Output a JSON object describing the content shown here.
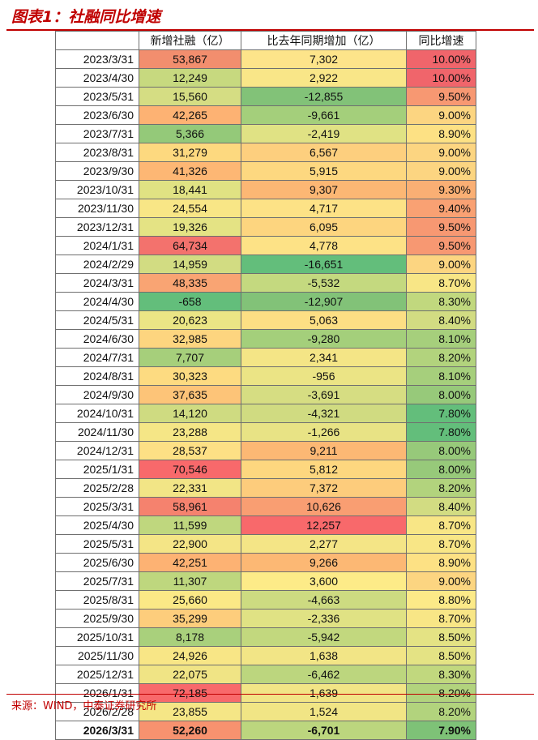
{
  "title": "图表1：社融同比增速",
  "headers": [
    "",
    "新增社融（亿）",
    "比去年同期增加（亿）",
    "同比增速"
  ],
  "rows": [
    {
      "date": "2023/3/31",
      "xz": "53,867",
      "bq": "7,302",
      "tb": "10.00%",
      "c1": "#f28e6e",
      "c2": "#fde48a",
      "c3": "#f0656b"
    },
    {
      "date": "2023/4/30",
      "xz": "12,249",
      "bq": "2,922",
      "tb": "10.00%",
      "c1": "#c7d97f",
      "c2": "#f9e688",
      "c3": "#f0656b"
    },
    {
      "date": "2023/5/31",
      "xz": "15,560",
      "bq": "-12,855",
      "tb": "9.50%",
      "c1": "#d5dd83",
      "c2": "#82c278",
      "c3": "#f79872"
    },
    {
      "date": "2023/6/30",
      "xz": "42,265",
      "bq": "-9,661",
      "tb": "9.00%",
      "c1": "#fdb273",
      "c2": "#a4cf7b",
      "c3": "#fcd581"
    },
    {
      "date": "2023/7/31",
      "xz": "5,366",
      "bq": "-2,419",
      "tb": "8.90%",
      "c1": "#94c979",
      "c2": "#e0e284",
      "c3": "#fde184"
    },
    {
      "date": "2023/8/31",
      "xz": "31,279",
      "bq": "6,567",
      "tb": "9.00%",
      "c1": "#fdd97f",
      "c2": "#fdcf7e",
      "c3": "#fcd581"
    },
    {
      "date": "2023/9/30",
      "xz": "41,326",
      "bq": "5,915",
      "tb": "9.00%",
      "c1": "#fdb774",
      "c2": "#fdd880",
      "c3": "#fcd581"
    },
    {
      "date": "2023/10/31",
      "xz": "18,441",
      "bq": "9,307",
      "tb": "9.30%",
      "c1": "#e0e283",
      "c2": "#fcb774",
      "c3": "#faaf74"
    },
    {
      "date": "2023/11/30",
      "xz": "24,554",
      "bq": "4,717",
      "tb": "9.40%",
      "c1": "#f8e686",
      "c2": "#fde286",
      "c3": "#f9a173"
    },
    {
      "date": "2023/12/31",
      "xz": "19,326",
      "bq": "6,095",
      "tb": "9.50%",
      "c1": "#e4e384",
      "c2": "#fdd57f",
      "c3": "#f79872"
    },
    {
      "date": "2024/1/31",
      "xz": "64,734",
      "bq": "4,778",
      "tb": "9.50%",
      "c1": "#f3726d",
      "c2": "#fde286",
      "c3": "#f79872"
    },
    {
      "date": "2024/2/29",
      "xz": "14,959",
      "bq": "-16,651",
      "tb": "9.00%",
      "c1": "#d2dc82",
      "c2": "#63be7b",
      "c3": "#fcd581"
    },
    {
      "date": "2024/3/31",
      "xz": "48,335",
      "bq": "-5,532",
      "tb": "8.70%",
      "c1": "#f9a473",
      "c2": "#c4d97f",
      "c3": "#f8e686"
    },
    {
      "date": "2024/4/30",
      "xz": "-658",
      "bq": "-12,907",
      "tb": "8.30%",
      "c1": "#63be7b",
      "c2": "#82c278",
      "c3": "#c1d87e"
    },
    {
      "date": "2024/5/31",
      "xz": "20,623",
      "bq": "5,063",
      "tb": "8.40%",
      "c1": "#ebe585",
      "c2": "#fddf84",
      "c3": "#d2dc82"
    },
    {
      "date": "2024/6/30",
      "xz": "32,985",
      "bq": "-9,280",
      "tb": "8.10%",
      "c1": "#fdd57f",
      "c2": "#a4cf7b",
      "c3": "#a6cf7c"
    },
    {
      "date": "2024/7/31",
      "xz": "7,707",
      "bq": "2,341",
      "tb": "8.20%",
      "c1": "#a6cf7b",
      "c2": "#f4e586",
      "c3": "#b2d37d"
    },
    {
      "date": "2024/8/31",
      "xz": "30,323",
      "bq": "-956",
      "tb": "8.10%",
      "c1": "#fddb81",
      "c2": "#ebe485",
      "c3": "#a6cf7c"
    },
    {
      "date": "2024/9/30",
      "xz": "37,635",
      "bq": "-3,691",
      "tb": "8.00%",
      "c1": "#fdc478",
      "c2": "#d6dd82",
      "c3": "#97c97a"
    },
    {
      "date": "2024/10/31",
      "xz": "14,120",
      "bq": "-4,321",
      "tb": "7.80%",
      "c1": "#cfdb81",
      "c2": "#d0db81",
      "c3": "#63be7b"
    },
    {
      "date": "2024/11/30",
      "xz": "23,288",
      "bq": "-1,266",
      "tb": "7.80%",
      "c1": "#f5e686",
      "c2": "#e8e385",
      "c3": "#63be7b"
    },
    {
      "date": "2024/12/31",
      "xz": "28,537",
      "bq": "9,211",
      "tb": "8.00%",
      "c1": "#fde085",
      "c2": "#fcb874",
      "c3": "#97c97a"
    },
    {
      "date": "2025/1/31",
      "xz": "70,546",
      "bq": "5,812",
      "tb": "8.00%",
      "c1": "#f8696b",
      "c2": "#fdd77f",
      "c3": "#97c97a"
    },
    {
      "date": "2025/2/28",
      "xz": "22,331",
      "bq": "7,372",
      "tb": "8.20%",
      "c1": "#f2e586",
      "c2": "#fdcc7c",
      "c3": "#b2d37d"
    },
    {
      "date": "2025/3/31",
      "xz": "58,961",
      "bq": "10,626",
      "tb": "8.40%",
      "c1": "#f5826e",
      "c2": "#f99e72",
      "c3": "#d2dc82"
    },
    {
      "date": "2025/4/30",
      "xz": "11,599",
      "bq": "12,257",
      "tb": "8.70%",
      "c1": "#bfd77e",
      "c2": "#f8696b",
      "c3": "#f8e686"
    },
    {
      "date": "2025/5/31",
      "xz": "22,900",
      "bq": "2,277",
      "tb": "8.70%",
      "c1": "#f4e586",
      "c2": "#f4e586",
      "c3": "#f8e686"
    },
    {
      "date": "2025/6/30",
      "xz": "42,251",
      "bq": "9,266",
      "tb": "8.90%",
      "c1": "#fdb273",
      "c2": "#fcb874",
      "c3": "#fde184"
    },
    {
      "date": "2025/7/31",
      "xz": "11,307",
      "bq": "3,600",
      "tb": "9.00%",
      "c1": "#bed77e",
      "c2": "#fdeb88",
      "c3": "#fcd581"
    },
    {
      "date": "2025/8/31",
      "xz": "25,660",
      "bq": "-4,663",
      "tb": "8.80%",
      "c1": "#fbe886",
      "c2": "#cddb81",
      "c3": "#fcea88"
    },
    {
      "date": "2025/9/30",
      "xz": "35,299",
      "bq": "-2,336",
      "tb": "8.70%",
      "c1": "#fdcd7c",
      "c2": "#e0e284",
      "c3": "#f8e686"
    },
    {
      "date": "2025/10/31",
      "xz": "8,178",
      "bq": "-5,942",
      "tb": "8.50%",
      "c1": "#a9d07c",
      "c2": "#c2d87e",
      "c3": "#e4e384"
    },
    {
      "date": "2025/11/30",
      "xz": "24,926",
      "bq": "1,638",
      "tb": "8.50%",
      "c1": "#f8e686",
      "c2": "#f2e586",
      "c3": "#e4e384"
    },
    {
      "date": "2025/12/31",
      "xz": "22,075",
      "bq": "-6,462",
      "tb": "8.30%",
      "c1": "#f0e485",
      "c2": "#bcd67e",
      "c3": "#c1d87e"
    },
    {
      "date": "2026/1/31",
      "xz": "72,185",
      "bq": "1,639",
      "tb": "8.20%",
      "c1": "#f8696b",
      "c2": "#f2e586",
      "c3": "#b2d37d"
    },
    {
      "date": "2026/2/28",
      "xz": "23,855",
      "bq": "1,524",
      "tb": "8.20%",
      "c1": "#f5e686",
      "c2": "#f1e585",
      "c3": "#b2d37d"
    },
    {
      "date": "2026/3/31",
      "xz": "52,260",
      "bq": "-6,701",
      "tb": "7.90%",
      "c1": "#f7926f",
      "c2": "#bcd67e",
      "c3": "#7ec277"
    }
  ],
  "source": "来源：WIND，中泰证券研究所"
}
